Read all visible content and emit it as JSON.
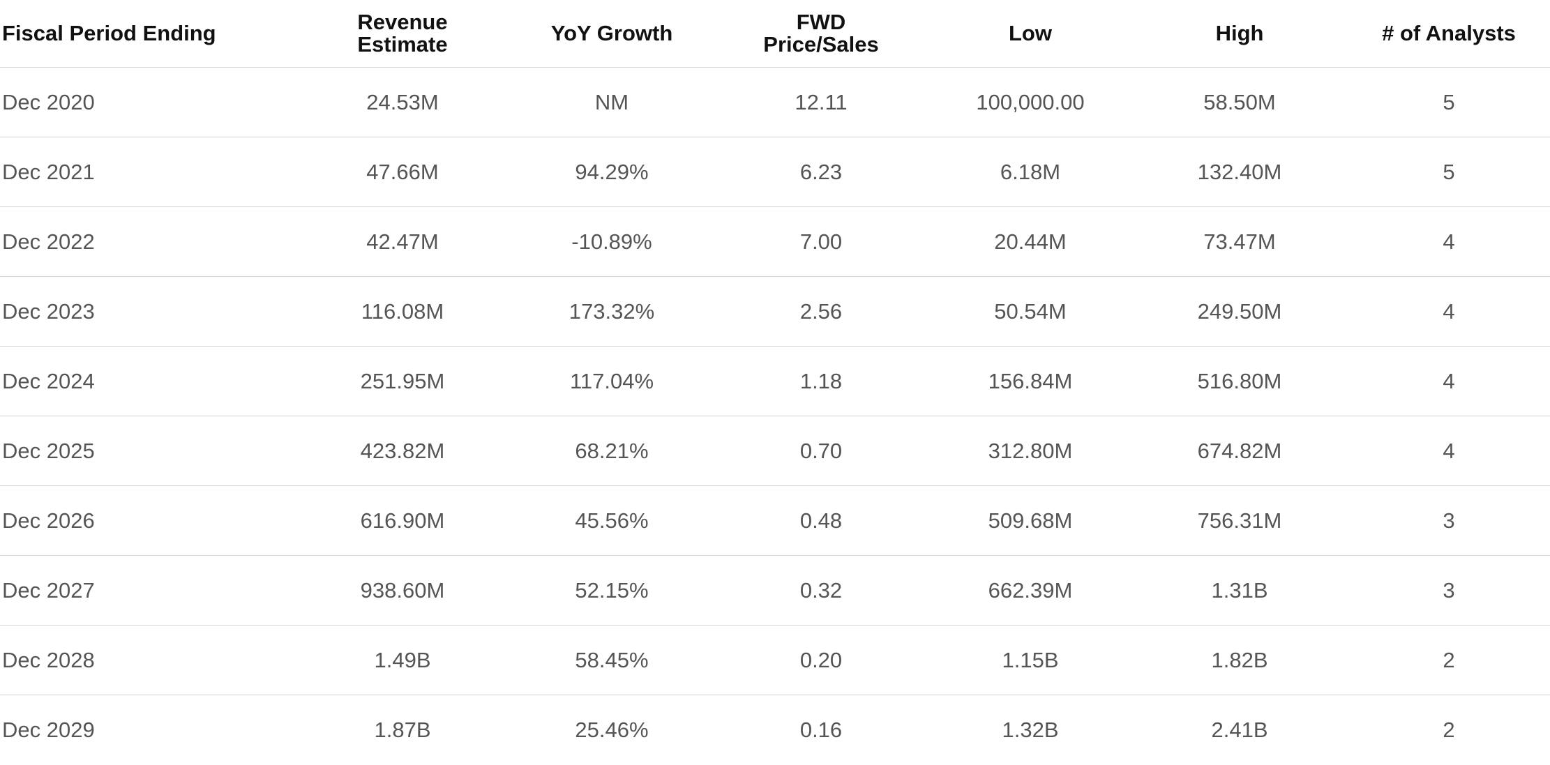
{
  "table": {
    "headers": [
      {
        "line1": "Fiscal Period Ending",
        "line2": ""
      },
      {
        "line1": "Revenue",
        "line2": "Estimate"
      },
      {
        "line1": "YoY Growth",
        "line2": ""
      },
      {
        "line1": "FWD",
        "line2": "Price/Sales"
      },
      {
        "line1": "Low",
        "line2": ""
      },
      {
        "line1": "High",
        "line2": ""
      },
      {
        "line1": "# of Analysts",
        "line2": ""
      }
    ],
    "rows": [
      [
        "Dec 2020",
        "24.53M",
        "NM",
        "12.11",
        "100,000.00",
        "58.50M",
        "5"
      ],
      [
        "Dec 2021",
        "47.66M",
        "94.29%",
        "6.23",
        "6.18M",
        "132.40M",
        "5"
      ],
      [
        "Dec 2022",
        "42.47M",
        "-10.89%",
        "7.00",
        "20.44M",
        "73.47M",
        "4"
      ],
      [
        "Dec 2023",
        "116.08M",
        "173.32%",
        "2.56",
        "50.54M",
        "249.50M",
        "4"
      ],
      [
        "Dec 2024",
        "251.95M",
        "117.04%",
        "1.18",
        "156.84M",
        "516.80M",
        "4"
      ],
      [
        "Dec 2025",
        "423.82M",
        "68.21%",
        "0.70",
        "312.80M",
        "674.82M",
        "4"
      ],
      [
        "Dec 2026",
        "616.90M",
        "45.56%",
        "0.48",
        "509.68M",
        "756.31M",
        "3"
      ],
      [
        "Dec 2027",
        "938.60M",
        "52.15%",
        "0.32",
        "662.39M",
        "1.31B",
        "3"
      ],
      [
        "Dec 2028",
        "1.49B",
        "58.45%",
        "0.20",
        "1.15B",
        "1.82B",
        "2"
      ],
      [
        "Dec 2029",
        "1.87B",
        "25.46%",
        "0.16",
        "1.32B",
        "2.41B",
        "2"
      ]
    ]
  }
}
